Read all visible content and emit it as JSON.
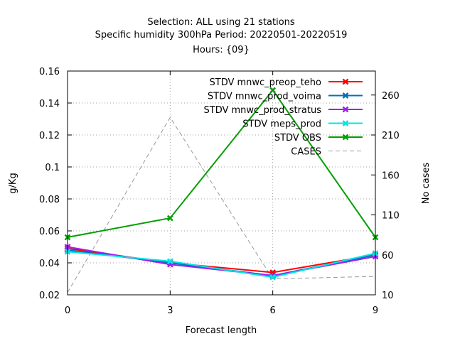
{
  "chart_data": {
    "type": "line",
    "title_lines": [
      "Selection: ALL using    21 stations",
      "Specific humidity 300hPa   Period: 20220501-20220519",
      "Hours: {09}"
    ],
    "xlabel": "Forecast length",
    "ylabel": "g/Kg",
    "y2label": "No cases",
    "x": [
      0,
      3,
      6,
      9
    ],
    "xlim": [
      0,
      9
    ],
    "xticks": [
      "0",
      "3",
      "6",
      "9"
    ],
    "ylim": [
      0.02,
      0.16
    ],
    "yticks": [
      "0.02",
      "0.04",
      "0.06",
      "0.08",
      "0.1",
      "0.12",
      "0.14",
      "0.16"
    ],
    "y2lim": [
      10,
      290
    ],
    "y2ticks": [
      "10",
      "60",
      "110",
      "160",
      "210",
      "260"
    ],
    "grid": true,
    "legend_position": "top-right",
    "series": [
      {
        "name": "STDV mnwc_preop_teho",
        "color": "#ff0000",
        "axis": "left",
        "marker": "x",
        "values": [
          0.049,
          0.04,
          0.034,
          0.045
        ]
      },
      {
        "name": "STDV mnwc_prod_voima",
        "color": "#0072bd",
        "axis": "left",
        "marker": "x",
        "values": [
          0.048,
          0.04,
          0.032,
          0.045
        ]
      },
      {
        "name": "STDV mnwc_prod_stratus",
        "color": "#a020f0",
        "axis": "left",
        "marker": "x",
        "values": [
          0.05,
          0.039,
          0.032,
          0.044
        ]
      },
      {
        "name": "STDV meps_prod",
        "color": "#00e5e5",
        "axis": "left",
        "marker": "x",
        "values": [
          0.047,
          0.041,
          0.031,
          0.046
        ]
      },
      {
        "name": "STDV OBS",
        "color": "#00a000",
        "axis": "left",
        "marker": "x",
        "values": [
          0.056,
          0.068,
          0.148,
          0.056
        ]
      },
      {
        "name": "CASES",
        "color": "#999999",
        "axis": "right",
        "dashed": true,
        "values": [
          13,
          232,
          30,
          33
        ]
      }
    ]
  }
}
